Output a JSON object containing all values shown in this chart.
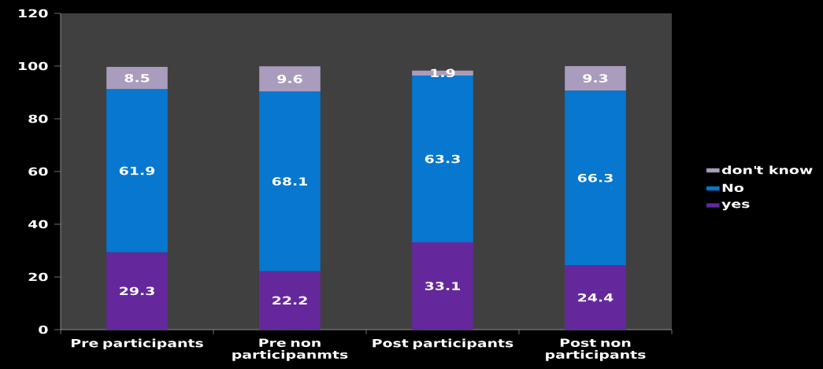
{
  "chart_data": {
    "type": "bar",
    "stacked": true,
    "categories": [
      "Pre participants",
      "Pre non participanmts",
      "Post participants",
      "Post non participants"
    ],
    "series": [
      {
        "name": "yes",
        "color": "#64289c",
        "values": [
          29.3,
          22.2,
          33.1,
          24.4
        ]
      },
      {
        "name": "No",
        "color": "#0777cf",
        "values": [
          61.9,
          68.1,
          63.3,
          66.3
        ]
      },
      {
        "name": "don't know",
        "color": "#aa9cbc",
        "values": [
          8.5,
          9.6,
          1.9,
          9.3
        ]
      }
    ],
    "ylim": [
      0,
      120
    ],
    "yticks": [
      0,
      20,
      40,
      60,
      80,
      100,
      120
    ],
    "data_labels": true,
    "legend": "right"
  }
}
